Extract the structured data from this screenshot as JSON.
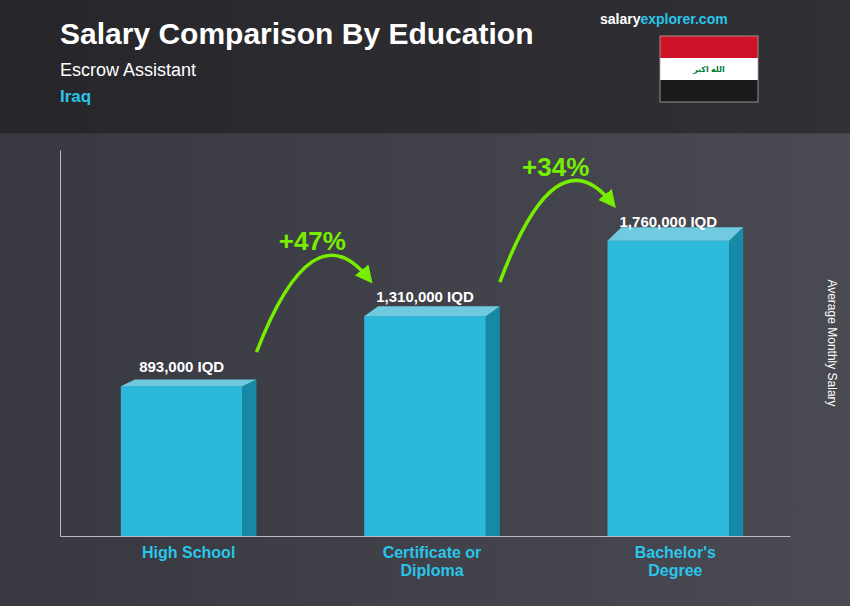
{
  "chart_data": {
    "type": "bar",
    "title": "Salary Comparison By Education",
    "subtitle": [
      "Escrow Assistant",
      "Iraq"
    ],
    "y_label": "Average Monthly Salary",
    "categories": [
      "High School",
      "Certificate or\nDiploma",
      "Bachelor's\nDegree"
    ],
    "values": [
      893000,
      1310000,
      1760000
    ],
    "value_labels": [
      "893,000 IQD",
      "1,310,000 IQD",
      "1,760,000 IQD"
    ],
    "data_labels": true,
    "color": "#29c5ea",
    "ylim": [
      0,
      2300000
    ],
    "tick_labels": false,
    "grid": false,
    "annotations": [
      "+47%",
      "+34%",
      "salary",
      "explorer",
      ".com",
      "الله اكبر"
    ]
  }
}
